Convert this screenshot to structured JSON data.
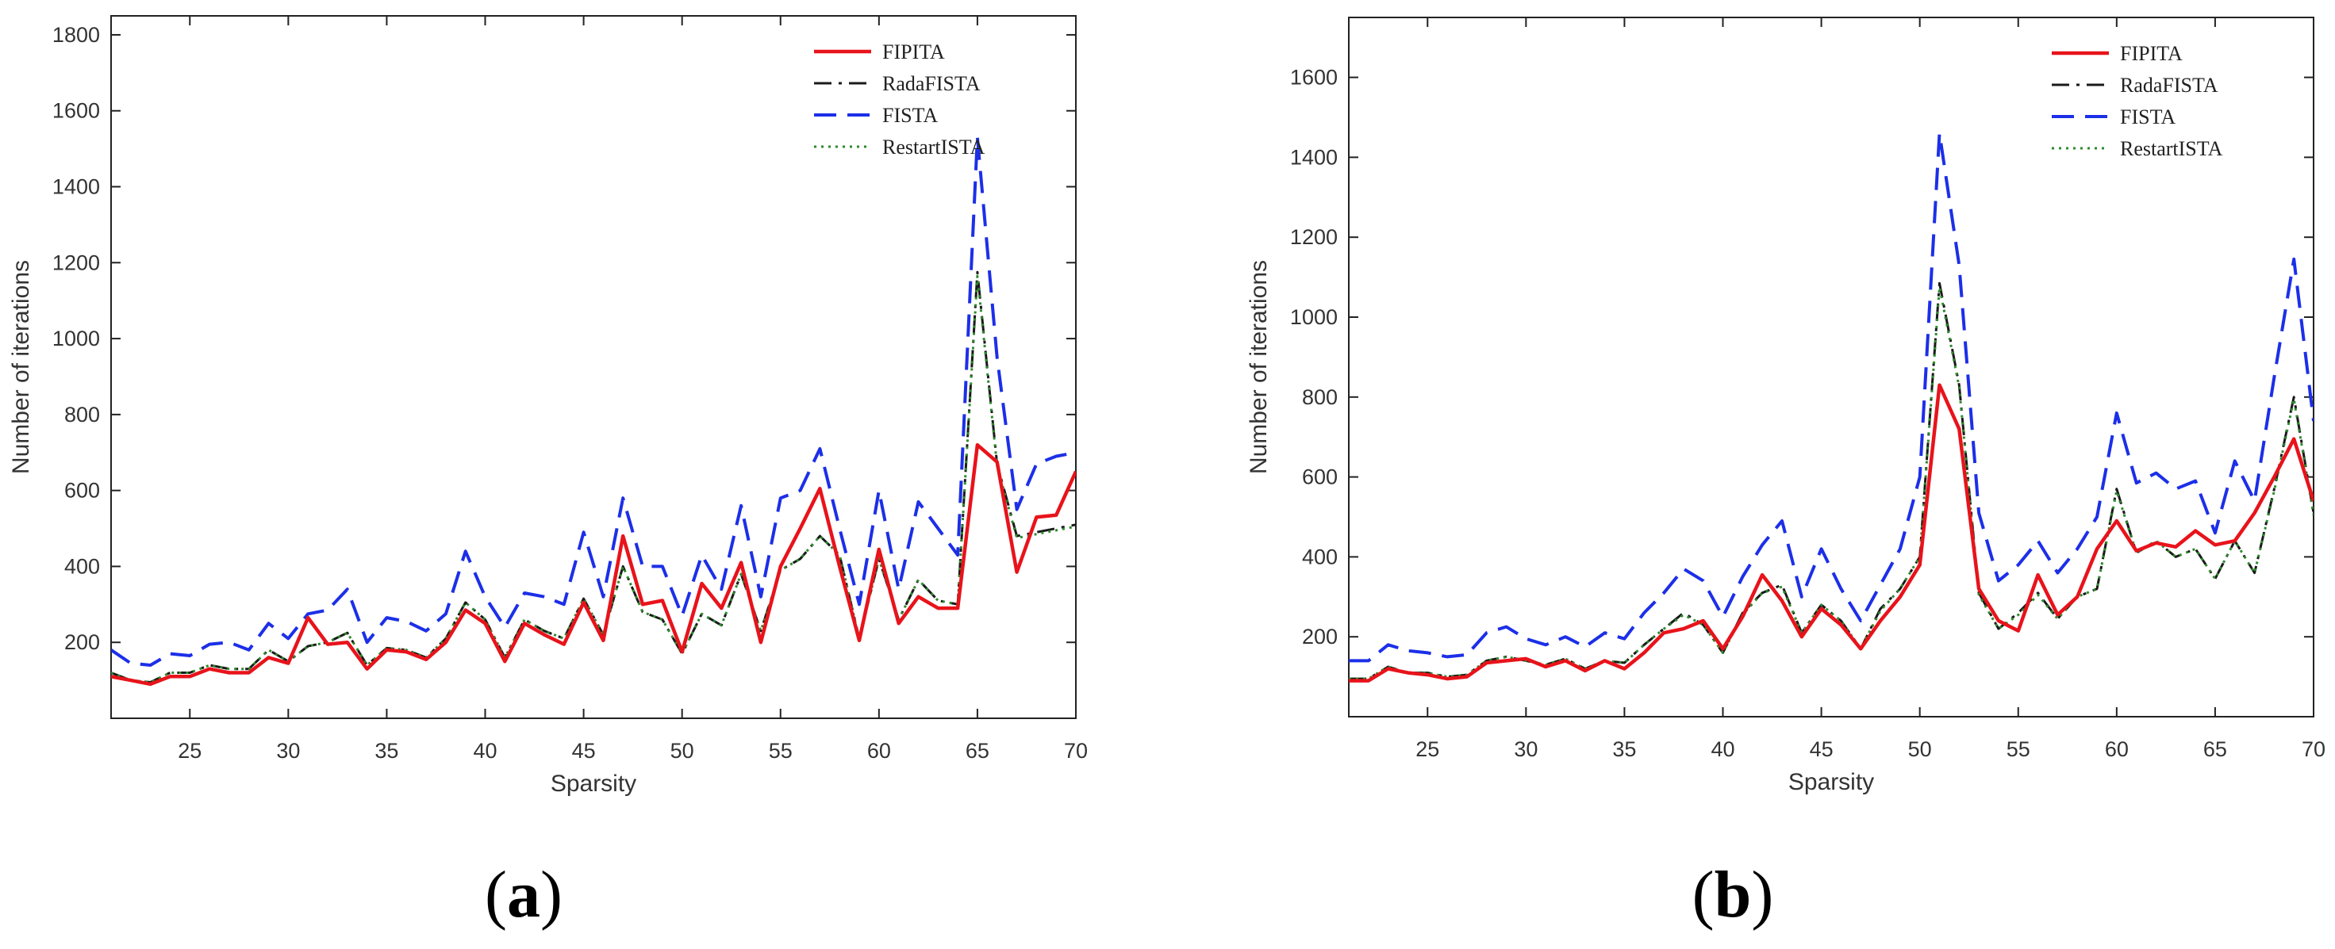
{
  "figure": {
    "panels": [
      {
        "label_open": "(",
        "label_letter": "a",
        "label_close": ")"
      },
      {
        "label_open": "(",
        "label_letter": "b",
        "label_close": ")"
      }
    ]
  },
  "colors": {
    "FIPITA": "#e8131b",
    "RadaFISTA": "#1a1a1a",
    "FISTA": "#1c2fe8",
    "RestartISTA": "#2d8a2d",
    "axes": "#222222"
  },
  "chart_data": [
    {
      "type": "line",
      "title": "",
      "xlabel": "Sparsity",
      "ylabel": "Number of iterations",
      "xlim": [
        21,
        70
      ],
      "ylim": [
        0,
        1850
      ],
      "xticks": [
        25,
        30,
        35,
        40,
        45,
        50,
        55,
        60,
        65,
        70
      ],
      "yticks": [
        200,
        400,
        600,
        800,
        1000,
        1200,
        1400,
        1600,
        1800
      ],
      "legend_position": "top-right",
      "grid": false,
      "x": [
        21,
        22,
        23,
        24,
        25,
        26,
        27,
        28,
        29,
        30,
        31,
        32,
        33,
        34,
        35,
        36,
        37,
        38,
        39,
        40,
        41,
        42,
        43,
        44,
        45,
        46,
        47,
        48,
        49,
        50,
        51,
        52,
        53,
        54,
        55,
        56,
        57,
        58,
        59,
        60,
        61,
        62,
        63,
        64,
        65,
        66,
        67,
        68,
        69,
        70
      ],
      "series": [
        {
          "name": "FIPITA",
          "style": "solid",
          "values": [
            110,
            100,
            90,
            110,
            110,
            130,
            120,
            120,
            160,
            145,
            265,
            195,
            200,
            130,
            180,
            175,
            155,
            200,
            285,
            250,
            150,
            250,
            220,
            195,
            305,
            205,
            480,
            300,
            310,
            175,
            355,
            290,
            410,
            200,
            400,
            500,
            605,
            400,
            205,
            445,
            250,
            320,
            290,
            290,
            720,
            675,
            385,
            530,
            535,
            650
          ]
        },
        {
          "name": "RadaFISTA",
          "style": "dashdot",
          "values": [
            120,
            100,
            95,
            120,
            120,
            140,
            130,
            130,
            180,
            150,
            190,
            200,
            225,
            140,
            185,
            180,
            160,
            210,
            305,
            260,
            160,
            260,
            230,
            210,
            315,
            220,
            400,
            280,
            260,
            170,
            275,
            245,
            380,
            230,
            390,
            420,
            480,
            430,
            210,
            420,
            260,
            365,
            310,
            300,
            1175,
            670,
            480,
            490,
            500,
            510
          ]
        },
        {
          "name": "FISTA",
          "style": "dashed",
          "values": [
            180,
            145,
            140,
            170,
            165,
            195,
            200,
            180,
            250,
            210,
            275,
            285,
            340,
            200,
            265,
            255,
            230,
            275,
            440,
            320,
            240,
            330,
            320,
            300,
            490,
            320,
            580,
            400,
            400,
            270,
            430,
            340,
            560,
            320,
            580,
            600,
            710,
            500,
            300,
            600,
            340,
            570,
            500,
            430,
            1530,
            950,
            550,
            670,
            690,
            700
          ]
        },
        {
          "name": "RestartISTA",
          "style": "dotted",
          "values": [
            120,
            100,
            95,
            120,
            120,
            140,
            130,
            130,
            180,
            150,
            190,
            200,
            225,
            140,
            185,
            180,
            160,
            210,
            305,
            260,
            160,
            260,
            230,
            210,
            315,
            220,
            400,
            280,
            260,
            170,
            275,
            245,
            380,
            230,
            390,
            420,
            480,
            430,
            210,
            420,
            260,
            365,
            310,
            300,
            1165,
            665,
            475,
            485,
            495,
            505
          ]
        }
      ]
    },
    {
      "type": "line",
      "title": "",
      "xlabel": "Sparsity",
      "ylabel": "Number of iterations",
      "xlim": [
        21,
        70
      ],
      "ylim": [
        0,
        1750
      ],
      "xticks": [
        25,
        30,
        35,
        40,
        45,
        50,
        55,
        60,
        65,
        70
      ],
      "yticks": [
        200,
        400,
        600,
        800,
        1000,
        1200,
        1400,
        1600
      ],
      "legend_position": "top-right",
      "grid": false,
      "x": [
        21,
        22,
        23,
        24,
        25,
        26,
        27,
        28,
        29,
        30,
        31,
        32,
        33,
        34,
        35,
        36,
        37,
        38,
        39,
        40,
        41,
        42,
        43,
        44,
        45,
        46,
        47,
        48,
        49,
        50,
        51,
        52,
        53,
        54,
        55,
        56,
        57,
        58,
        59,
        60,
        61,
        62,
        63,
        64,
        65,
        66,
        67,
        68,
        69,
        70
      ],
      "series": [
        {
          "name": "FIPITA",
          "style": "solid",
          "values": [
            90,
            90,
            120,
            110,
            105,
            95,
            100,
            135,
            140,
            145,
            125,
            140,
            115,
            140,
            120,
            160,
            210,
            220,
            240,
            170,
            250,
            355,
            290,
            200,
            270,
            230,
            170,
            240,
            300,
            380,
            830,
            720,
            320,
            240,
            215,
            355,
            255,
            300,
            420,
            490,
            415,
            435,
            425,
            465,
            430,
            440,
            510,
            600,
            695,
            540
          ]
        },
        {
          "name": "RadaFISTA",
          "style": "dashdot",
          "values": [
            95,
            95,
            125,
            110,
            110,
            100,
            105,
            140,
            150,
            140,
            130,
            145,
            120,
            140,
            135,
            180,
            220,
            260,
            230,
            160,
            260,
            310,
            330,
            210,
            280,
            240,
            170,
            270,
            320,
            400,
            1085,
            830,
            310,
            220,
            260,
            310,
            245,
            300,
            320,
            570,
            410,
            440,
            400,
            420,
            345,
            440,
            360,
            570,
            800,
            510
          ]
        },
        {
          "name": "FISTA",
          "style": "dashed",
          "values": [
            140,
            140,
            180,
            165,
            160,
            150,
            155,
            210,
            225,
            195,
            180,
            200,
            175,
            210,
            195,
            260,
            310,
            370,
            340,
            250,
            350,
            430,
            490,
            300,
            420,
            320,
            240,
            330,
            420,
            600,
            1460,
            1130,
            510,
            340,
            380,
            440,
            360,
            420,
            500,
            760,
            585,
            610,
            570,
            590,
            460,
            640,
            540,
            850,
            1145,
            740
          ]
        },
        {
          "name": "RestartISTA",
          "style": "dotted",
          "values": [
            95,
            95,
            125,
            110,
            110,
            100,
            105,
            140,
            150,
            140,
            130,
            145,
            120,
            140,
            135,
            180,
            220,
            255,
            230,
            160,
            255,
            310,
            325,
            210,
            280,
            240,
            170,
            265,
            320,
            400,
            1075,
            825,
            305,
            220,
            255,
            305,
            245,
            300,
            320,
            565,
            410,
            440,
            400,
            420,
            345,
            440,
            360,
            565,
            795,
            505
          ]
        }
      ]
    }
  ]
}
